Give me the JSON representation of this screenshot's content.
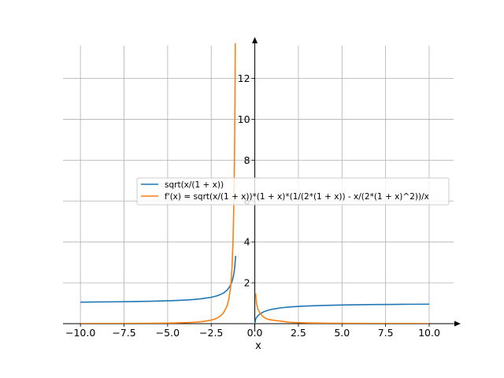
{
  "chart_data": {
    "type": "line",
    "title": "",
    "xlabel": "x",
    "ylabel": "",
    "xlim": [
      -11,
      11.4
    ],
    "ylim": [
      0,
      13.6
    ],
    "xticks": [
      -10.0,
      -7.5,
      -5.0,
      -2.5,
      0.0,
      2.5,
      5.0,
      7.5,
      10.0
    ],
    "xtick_labels": [
      "−10.0",
      "−7.5",
      "−5.0",
      "−2.5",
      "0.0",
      "2.5",
      "5.0",
      "7.5",
      "10.0"
    ],
    "yticks": [
      2,
      4,
      6,
      8,
      10,
      12
    ],
    "ytick_labels": [
      "2",
      "4",
      "6",
      "8",
      "10",
      "12"
    ],
    "grid": true,
    "legend_position": "center-right",
    "series": [
      {
        "name": "sqrt(x/(1 + x))",
        "color": "#1f77b4",
        "segments": [
          {
            "x": [
              -10,
              -9,
              -8,
              -7,
              -6,
              -5,
              -4.5,
              -4,
              -3.5,
              -3,
              -2.5,
              -2.2,
              -2,
              -1.8,
              -1.6,
              -1.45,
              -1.35,
              -1.3,
              -1.25,
              -1.2,
              -1.15,
              -1.1
            ],
            "y": [
              1.054,
              1.061,
              1.069,
              1.08,
              1.095,
              1.118,
              1.134,
              1.155,
              1.183,
              1.225,
              1.291,
              1.354,
              1.414,
              1.5,
              1.633,
              1.795,
              1.964,
              2.082,
              2.236,
              2.449,
              2.769,
              3.317
            ]
          },
          {
            "x": [
              0,
              0.05,
              0.1,
              0.2,
              0.3,
              0.5,
              0.75,
              1,
              1.5,
              2,
              2.5,
              3,
              4,
              5,
              6,
              7,
              8,
              9,
              10
            ],
            "y": [
              0,
              0.218,
              0.302,
              0.408,
              0.48,
              0.577,
              0.655,
              0.707,
              0.775,
              0.816,
              0.845,
              0.866,
              0.894,
              0.913,
              0.926,
              0.935,
              0.943,
              0.949,
              0.953
            ]
          }
        ]
      },
      {
        "name": "f'(x) = sqrt(x/(1 + x))*(1 + x)*(1/(2*(1 + x)) - x/(2*(1 + x)^2))/x",
        "color": "#ff7f0e",
        "segments": [
          {
            "x": [
              -10,
              -9,
              -8,
              -7,
              -6,
              -5,
              -4.5,
              -4,
              -3.5,
              -3,
              -2.5,
              -2.2,
              -2,
              -1.8,
              -1.6,
              -1.5,
              -1.4,
              -1.35,
              -1.3,
              -1.25,
              -1.2,
              -1.17,
              -1.15,
              -1.13,
              -1.11
            ],
            "y": [
              0.0059,
              0.0074,
              0.0095,
              0.0129,
              0.0183,
              0.028,
              0.036,
              0.0481,
              0.0676,
              0.102,
              0.172,
              0.256,
              0.354,
              0.521,
              0.85,
              1.155,
              1.7,
              2.159,
              2.887,
              4.001,
              5.911,
              7.773,
              9.513,
              12.039,
              15.88
            ]
          },
          {
            "x": [
              0.05,
              0.1,
              0.15,
              0.2,
              0.3,
              0.4,
              0.5,
              0.75,
              1,
              1.5,
              2,
              2.5,
              3,
              4,
              5,
              6,
              7,
              8,
              9,
              10
            ],
            "y": [
              1.477,
              1.004,
              0.784,
              0.68,
              0.513,
              0.415,
              0.321,
              0.214,
              0.177,
              0.1239,
              0.068,
              0.0483,
              0.0361,
              0.0224,
              0.0152,
              0.011,
              0.0084,
              0.0065,
              0.0053,
              0.0043
            ]
          }
        ]
      }
    ]
  }
}
